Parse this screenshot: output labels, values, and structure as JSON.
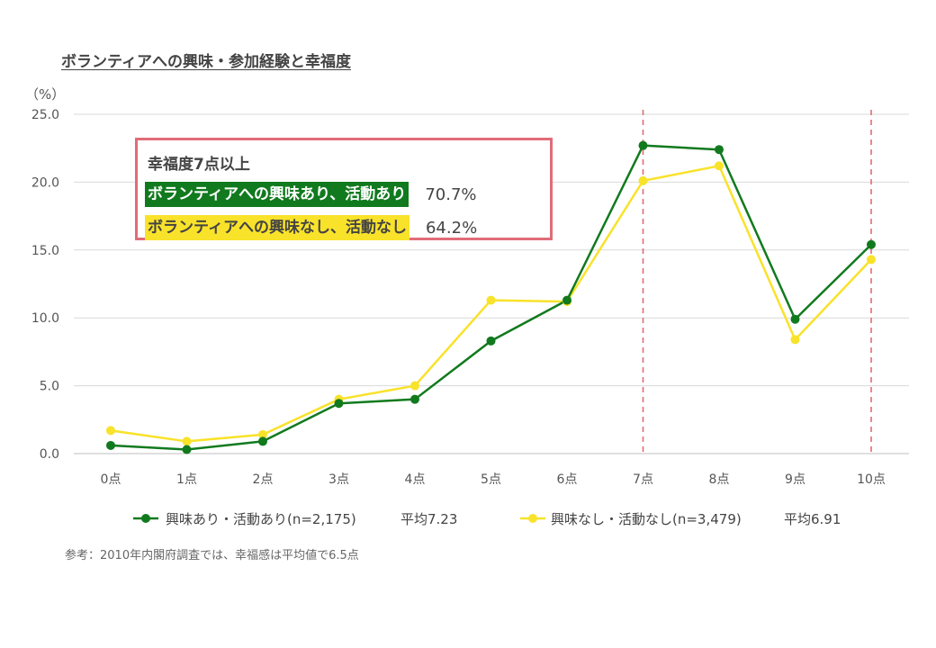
{
  "chart_data": {
    "type": "line",
    "title": "ボランティアへの興味・参加経験と幸福度",
    "ylabel": "（%）",
    "xlabel": "",
    "ylim": [
      0,
      25
    ],
    "yticks": [
      "0.0",
      "5.0",
      "10.0",
      "15.0",
      "20.0",
      "25.0"
    ],
    "ytick_values": [
      0,
      5,
      10,
      15,
      20,
      25
    ],
    "categories": [
      "0点",
      "1点",
      "2点",
      "3点",
      "4点",
      "5点",
      "6点",
      "7点",
      "8点",
      "9点",
      "10点"
    ],
    "grid": true,
    "legend_position": "bottom",
    "series": [
      {
        "name": "興味あり・活動あり(n=2,175)",
        "average_label": "平均7.23",
        "color": "#117a1e",
        "values": [
          0.6,
          0.3,
          0.9,
          3.7,
          4.0,
          8.3,
          11.3,
          22.7,
          22.4,
          9.9,
          15.4
        ]
      },
      {
        "name": "興味なし・活動なし(n=3,479)",
        "average_label": "平均6.91",
        "color": "#f9e22a",
        "values": [
          1.7,
          0.9,
          1.4,
          4.0,
          5.0,
          11.3,
          11.2,
          20.1,
          21.2,
          8.4,
          14.3
        ]
      }
    ],
    "reference_lines": [
      "7点",
      "10点"
    ],
    "reference_line_color": "#e06c78"
  },
  "callout": {
    "heading": "幸福度7点以上",
    "rows": [
      {
        "label": "ボランティアへの興味あり、活動あり",
        "value": "70.7%",
        "color": "#117a1e"
      },
      {
        "label": "ボランティアへの興味なし、活動なし",
        "value": "64.2%",
        "color": "#f9e22a"
      }
    ]
  },
  "note": "参考：2010年内閣府調査では、幸福感は平均値で6.5点"
}
